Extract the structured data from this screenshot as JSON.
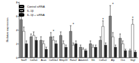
{
  "chart_data": {
    "type": "bar",
    "y_label": "Relative expression",
    "categories": [
      "Sox9",
      "Col2a1",
      "Acan",
      "Col10a1",
      "Mmp13",
      "Runx2",
      "Adamts5",
      "Ihh",
      "Col1a1",
      "Alp",
      "Ocn",
      "Vegf"
    ],
    "series": [
      {
        "name": "Control siRNA",
        "color": "#7f7f7f",
        "values": [
          5.5,
          3.0,
          2.5,
          3.0,
          3.2,
          3.8,
          1.5,
          2.0,
          2.5,
          6.0,
          2.8,
          1.0
        ],
        "errors": [
          1.2,
          0.4,
          0.5,
          0.6,
          0.5,
          0.8,
          0.3,
          0.4,
          0.5,
          1.5,
          0.6,
          0.2
        ]
      },
      {
        "name": "IL-1β",
        "color": "#ffffff",
        "values": [
          3.8,
          3.2,
          2.0,
          2.5,
          2.0,
          1.8,
          1.2,
          1.5,
          4.5,
          3.0,
          2.0,
          4.8
        ],
        "errors": [
          0.6,
          0.5,
          0.4,
          0.5,
          0.4,
          0.3,
          0.2,
          0.3,
          0.8,
          0.6,
          0.4,
          0.7
        ]
      },
      {
        "name": "IL-1β + siRNA",
        "color": "#262626",
        "values": [
          2.0,
          2.5,
          1.2,
          2.0,
          1.5,
          2.0,
          1.0,
          1.5,
          1.8,
          1.5,
          1.0,
          0.8
        ],
        "errors": [
          0.4,
          0.4,
          0.3,
          0.4,
          0.3,
          0.4,
          0.2,
          0.3,
          0.3,
          0.3,
          0.2,
          0.2
        ]
      }
    ],
    "annotations": [
      {
        "category": 0,
        "y": 6.9,
        "text": "*"
      },
      {
        "category": 3,
        "y": 3.8,
        "text": "*"
      },
      {
        "category": 5,
        "y": 4.8,
        "text": "*"
      },
      {
        "category": 8,
        "y": 5.5,
        "text": "*"
      },
      {
        "category": 9,
        "y": 7.7,
        "text": "*"
      },
      {
        "category": 11,
        "y": 5.7,
        "text": "*"
      }
    ],
    "ylim": [
      0,
      8
    ],
    "yticks": [
      0,
      2,
      4,
      6,
      8
    ],
    "legend": "top-left",
    "grid": false
  }
}
